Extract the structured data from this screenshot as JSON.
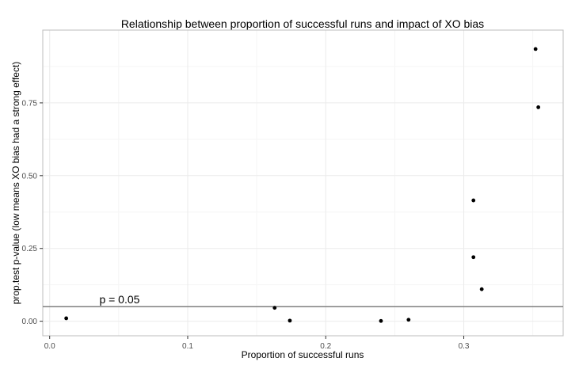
{
  "chart_data": {
    "type": "scatter",
    "title": "Relationship between proportion of successful runs and impact of XO bias",
    "xlabel": "Proportion of successful runs",
    "ylabel": "prop.test p-value (low means XO bias had a strong effect)",
    "xlim": [
      -0.005,
      0.372
    ],
    "ylim": [
      -0.05,
      1.0
    ],
    "grid": true,
    "x_ticks": [
      0.0,
      0.1,
      0.2,
      0.3
    ],
    "x_tick_labels": [
      "0.0",
      "0.1",
      "0.2",
      "0.3"
    ],
    "y_ticks": [
      0.0,
      0.25,
      0.5,
      0.75
    ],
    "y_tick_labels": [
      "0.00",
      "0.25",
      "0.50",
      "0.75"
    ],
    "points": [
      {
        "x": 0.012,
        "y": 0.01
      },
      {
        "x": 0.163,
        "y": 0.046
      },
      {
        "x": 0.174,
        "y": 0.002
      },
      {
        "x": 0.24,
        "y": 0.001
      },
      {
        "x": 0.26,
        "y": 0.005
      },
      {
        "x": 0.307,
        "y": 0.415
      },
      {
        "x": 0.307,
        "y": 0.22
      },
      {
        "x": 0.313,
        "y": 0.11
      },
      {
        "x": 0.352,
        "y": 0.935
      },
      {
        "x": 0.354,
        "y": 0.735
      }
    ],
    "reference_line": {
      "y": 0.05,
      "label": "p = 0.05",
      "label_x": 0.036,
      "color": "#7f7f7f"
    },
    "colors": {
      "point": "#000000",
      "panel_border": "#bdbdbd",
      "grid_major": "#ebebeb",
      "grid_minor": "#f5f5f5",
      "text": "#000000",
      "tick_label": "#4d4d4d"
    }
  }
}
